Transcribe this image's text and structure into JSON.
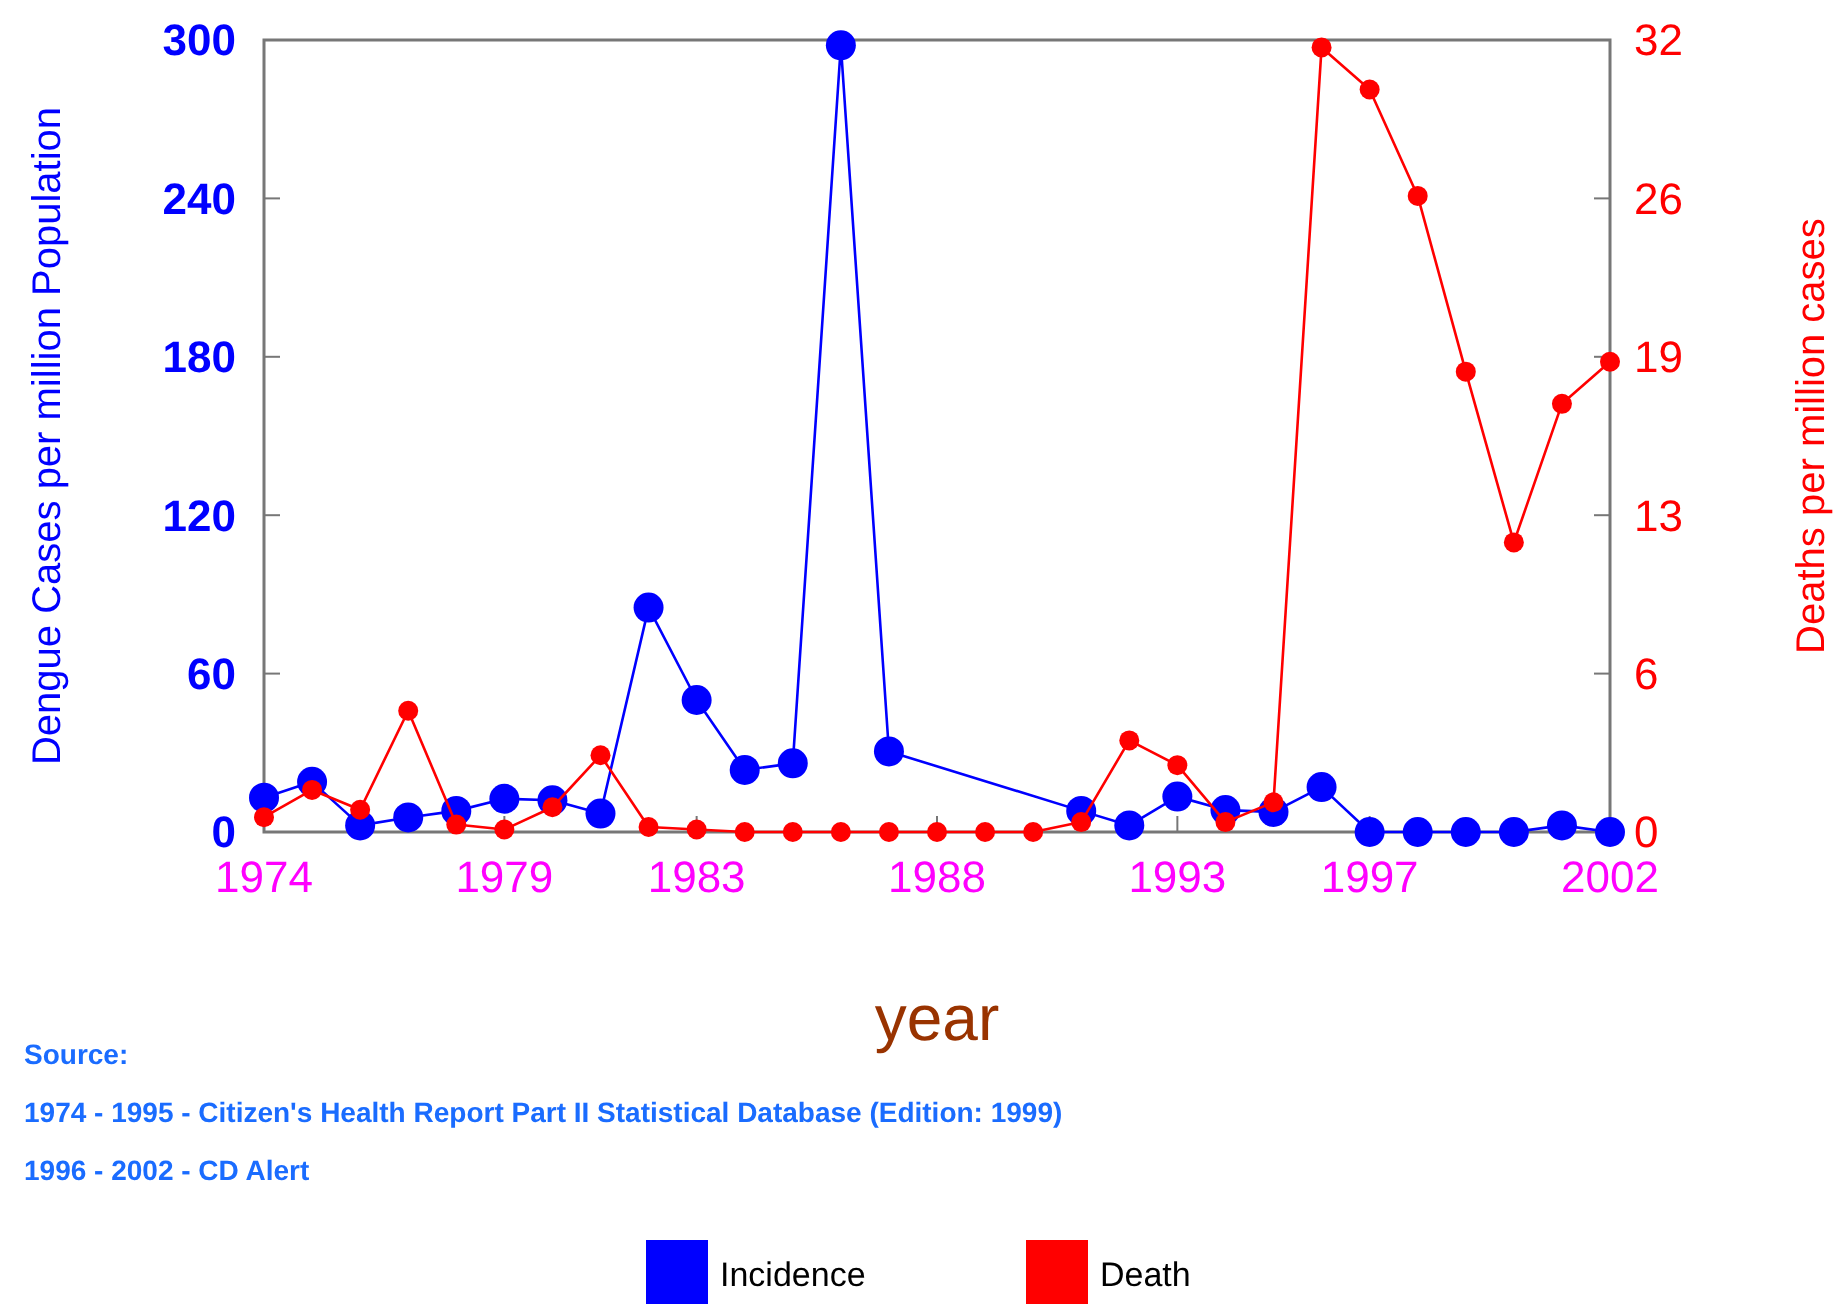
{
  "chart_data": {
    "type": "line",
    "xlabel": "year",
    "ylabel": "Dengue Cases per million Population",
    "y2label": "Deaths per million cases",
    "xlim": [
      1974,
      2002
    ],
    "xticks": [
      1974,
      1979,
      1983,
      1988,
      1993,
      1997,
      2002
    ],
    "ylim": [
      0,
      300
    ],
    "yticks": [
      0,
      60,
      120,
      180,
      240,
      300
    ],
    "y2lim": [
      0,
      32
    ],
    "y2ticks": [
      0,
      {
        "value": 6.4,
        "label": "6"
      },
      {
        "value": 12.8,
        "label": "13"
      },
      {
        "value": 19.2,
        "label": "19"
      },
      {
        "value": 25.6,
        "label": "26"
      },
      32
    ],
    "marker": "circle",
    "line_style": "solid",
    "grid": false,
    "legend": "bottom",
    "annotations": [
      "Source:",
      "1974 - 1995 - Citizen's Health Report Part II Statistical Database (Edition: 1999)",
      "1996 - 2002 - CD Alert"
    ],
    "series": [
      {
        "name": "Incidence",
        "color": "#0000ff",
        "x": [
          1974,
          1975,
          1976,
          1977,
          1978,
          1979,
          1980,
          1981,
          1982,
          1983,
          1984,
          1985,
          1986,
          1987,
          1991,
          1992,
          1993,
          1994,
          1995,
          1996,
          1997,
          1998,
          1999,
          2000,
          2001,
          2002
        ],
        "values": [
          13,
          19,
          2.5,
          5.5,
          8,
          12.6,
          12,
          7,
          85,
          50,
          23.5,
          26,
          298,
          30.5,
          8,
          2.5,
          13.4,
          8.3,
          7.6,
          17,
          0,
          0,
          0,
          0,
          2.5,
          0
        ]
      },
      {
        "name": "Death",
        "color": "#ff0000",
        "axis": "y2",
        "x": [
          1974,
          1975,
          1976,
          1977,
          1978,
          1979,
          1980,
          1981,
          1982,
          1983,
          1984,
          1985,
          1986,
          1987,
          1988,
          1989,
          1990,
          1991,
          1992,
          1993,
          1994,
          1995,
          1996,
          1997,
          1998,
          1999,
          2000,
          2001,
          2002
        ],
        "values": [
          0.6,
          1.7,
          0.9,
          4.9,
          0.3,
          0.1,
          1.0,
          3.1,
          0.2,
          0.1,
          0,
          0,
          0,
          0,
          0,
          0,
          0,
          0.4,
          3.7,
          2.7,
          0.4,
          1.2,
          31.7,
          30.0,
          25.7,
          18.6,
          11.7,
          17.3,
          19.0
        ]
      }
    ]
  }
}
